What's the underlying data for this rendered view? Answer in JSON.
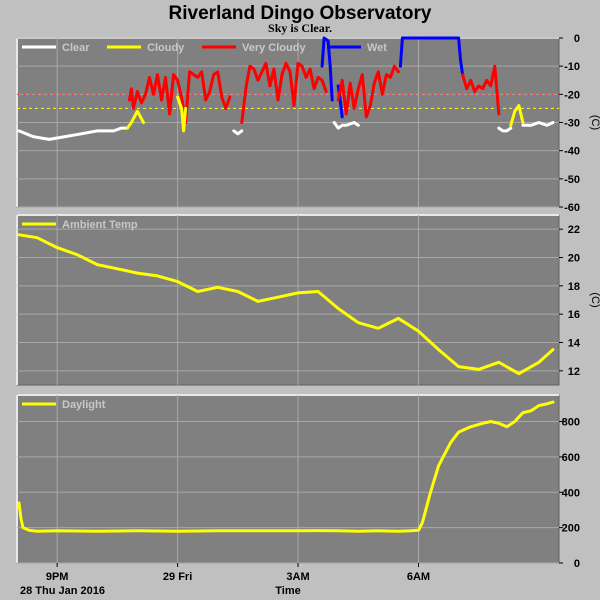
{
  "title": "Riverland Dingo Observatory",
  "subtitle": "Sky is Clear.",
  "x_axis": {
    "label": "Time",
    "date_label": "28 Thu Jan 2016",
    "range_hours": [
      20.0,
      33.5
    ],
    "ticks": [
      {
        "h": 21,
        "label": "9PM"
      },
      {
        "h": 24,
        "label": "29 Fri"
      },
      {
        "h": 27,
        "label": "3AM"
      },
      {
        "h": 30,
        "label": "6AM"
      }
    ]
  },
  "colors": {
    "background": "#c0c0c0",
    "plot_bg": "#808080",
    "clear": "#ffffff",
    "cloudy": "#ffff00",
    "very_cloudy": "#ff0000",
    "wet": "#0000ff",
    "ambient": "#ffff00",
    "daylight": "#ffff00",
    "threshold_red": "#ff4040",
    "threshold_yellow": "#ffff00"
  },
  "chart_data": [
    {
      "type": "line",
      "name": "sky",
      "ylabel": "(C)",
      "ylim": [
        -60,
        0
      ],
      "yticks": [
        0,
        -10,
        -20,
        -30,
        -40,
        -50,
        -60
      ],
      "grid": true,
      "legend": {
        "placement": "top-left",
        "entries": [
          "Clear",
          "Cloudy",
          "Very Cloudy",
          "Wet"
        ]
      },
      "thresholds": [
        -20,
        -25
      ],
      "series": [
        {
          "name": "Clear",
          "x": [
            20.05,
            20.4,
            20.8,
            21.2,
            21.6,
            22.0,
            22.4,
            22.6,
            22.75
          ],
          "y": [
            -33,
            -35,
            -36,
            -35,
            -34,
            -33,
            -33,
            -32,
            -32
          ]
        },
        {
          "name": "Cloudy",
          "x": [
            22.75,
            22.85,
            23.0,
            23.15
          ],
          "y": [
            -32,
            -30,
            -26,
            -30
          ]
        },
        {
          "name": "Very Cloudy",
          "x": [
            22.8,
            22.85,
            22.9,
            23.0,
            23.1,
            23.2,
            23.3,
            23.4,
            23.5,
            23.6,
            23.7,
            23.8,
            23.9,
            24.0,
            24.1,
            24.2,
            24.3,
            24.4,
            24.5,
            24.6,
            24.7,
            24.8,
            24.9,
            25.0,
            25.1,
            25.2,
            25.3
          ],
          "y": [
            -22,
            -18,
            -25,
            -19,
            -23,
            -20,
            -14,
            -20,
            -13,
            -22,
            -14,
            -27,
            -13,
            -15,
            -21,
            -30,
            -12,
            -13,
            -14,
            -12,
            -22,
            -19,
            -13,
            -12,
            -21,
            -25,
            -21
          ]
        },
        {
          "name": "Cloudy",
          "x": [
            24.0,
            24.1,
            24.15,
            24.2
          ],
          "y": [
            -21,
            -25,
            -33,
            -25
          ]
        },
        {
          "name": "Clear",
          "x": [
            25.4,
            25.5,
            25.6
          ],
          "y": [
            -33,
            -34,
            -33
          ]
        },
        {
          "name": "Very Cloudy",
          "x": [
            25.6,
            25.7,
            25.8,
            25.9,
            26.0,
            26.1,
            26.2,
            26.3,
            26.4,
            26.5,
            26.6,
            26.7,
            26.8,
            26.9,
            27.0,
            27.1,
            27.2,
            27.3,
            27.4,
            27.5,
            27.6,
            27.7
          ],
          "y": [
            -30,
            -18,
            -10,
            -11,
            -15,
            -12,
            -9,
            -17,
            -11,
            -22,
            -13,
            -9,
            -12,
            -24,
            -9,
            -10,
            -14,
            -11,
            -18,
            -14,
            -15,
            -19
          ]
        },
        {
          "name": "Wet",
          "x": [
            27.6,
            27.65,
            27.75,
            27.8,
            27.85
          ],
          "y": [
            -10,
            0,
            -1,
            -10,
            -22
          ]
        },
        {
          "name": "Clear",
          "x": [
            27.9,
            28.0,
            28.1,
            28.2,
            28.4,
            28.5
          ],
          "y": [
            -30,
            -32,
            -31,
            -31,
            -30,
            -31
          ]
        },
        {
          "name": "Wet",
          "x": [
            28.0,
            28.05,
            28.1
          ],
          "y": [
            -17,
            -22,
            -28
          ]
        },
        {
          "name": "Very Cloudy",
          "x": [
            28.0,
            28.1,
            28.2,
            28.3,
            28.4,
            28.5,
            28.6,
            28.7,
            28.8,
            28.9,
            29.0,
            29.1,
            29.2,
            29.3,
            29.4,
            29.5
          ],
          "y": [
            -22,
            -15,
            -27,
            -16,
            -25,
            -18,
            -13,
            -28,
            -24,
            -16,
            -12,
            -20,
            -13,
            -14,
            -10,
            -12
          ]
        },
        {
          "name": "Wet",
          "x": [
            29.55,
            29.6,
            30.0,
            30.5,
            31.0,
            31.05,
            31.1
          ],
          "y": [
            -10,
            0,
            0,
            0,
            0,
            -8,
            -13
          ]
        },
        {
          "name": "Very Cloudy",
          "x": [
            31.1,
            31.2,
            31.3,
            31.4,
            31.5,
            31.6,
            31.7,
            31.8,
            31.9,
            32.0
          ],
          "y": [
            -13,
            -18,
            -15,
            -19,
            -17,
            -18,
            -15,
            -17,
            -10,
            -27
          ]
        },
        {
          "name": "Clear",
          "x": [
            32.0,
            32.1,
            32.2,
            32.3
          ],
          "y": [
            -32,
            -33,
            -33,
            -32
          ]
        },
        {
          "name": "Cloudy",
          "x": [
            32.3,
            32.4,
            32.5,
            32.6
          ],
          "y": [
            -31,
            -26,
            -24,
            -30
          ]
        },
        {
          "name": "Clear",
          "x": [
            32.6,
            32.8,
            33.0,
            33.2,
            33.35
          ],
          "y": [
            -31,
            -31,
            -30,
            -31,
            -30
          ]
        }
      ]
    },
    {
      "type": "line",
      "name": "ambient",
      "ylabel": "(C)",
      "ylim": [
        11,
        23
      ],
      "yticks": [
        12,
        14,
        16,
        18,
        20,
        22
      ],
      "grid": true,
      "legend": {
        "placement": "top-left",
        "entries": [
          "Ambient Temp"
        ]
      },
      "series": [
        {
          "name": "Ambient Temp",
          "x": [
            20.05,
            20.5,
            21.0,
            21.5,
            22.0,
            22.5,
            23.0,
            23.5,
            24.0,
            24.5,
            25.0,
            25.5,
            26.0,
            26.5,
            27.0,
            27.5,
            28.0,
            28.5,
            29.0,
            29.5,
            30.0,
            30.5,
            31.0,
            31.5,
            32.0,
            32.5,
            33.0,
            33.35
          ],
          "y": [
            21.6,
            21.4,
            20.7,
            20.2,
            19.5,
            19.2,
            18.9,
            18.7,
            18.3,
            17.6,
            17.9,
            17.6,
            16.9,
            17.2,
            17.5,
            17.6,
            16.4,
            15.4,
            15.0,
            15.7,
            14.8,
            13.5,
            12.3,
            12.1,
            12.6,
            11.8,
            12.6,
            13.5
          ]
        }
      ]
    },
    {
      "type": "line",
      "name": "daylight",
      "ylabel": "",
      "ylim": [
        0,
        950
      ],
      "yticks": [
        0,
        200,
        400,
        600,
        800
      ],
      "grid": true,
      "legend": {
        "placement": "top-left",
        "entries": [
          "Daylight"
        ]
      },
      "series": [
        {
          "name": "Daylight",
          "x": [
            20.05,
            20.1,
            20.15,
            20.3,
            20.5,
            21.0,
            22.0,
            23.0,
            24.0,
            25.0,
            26.0,
            27.0,
            27.5,
            28.0,
            28.5,
            29.0,
            29.5,
            29.8,
            30.0,
            30.1,
            30.3,
            30.5,
            30.8,
            31.0,
            31.3,
            31.6,
            31.8,
            32.0,
            32.2,
            32.4,
            32.6,
            32.8,
            33.0,
            33.2,
            33.35
          ],
          "y": [
            340,
            250,
            200,
            185,
            180,
            182,
            180,
            182,
            180,
            182,
            182,
            182,
            183,
            182,
            180,
            182,
            180,
            182,
            185,
            230,
            400,
            550,
            680,
            740,
            770,
            790,
            800,
            790,
            770,
            800,
            850,
            860,
            890,
            900,
            910
          ]
        }
      ]
    }
  ]
}
